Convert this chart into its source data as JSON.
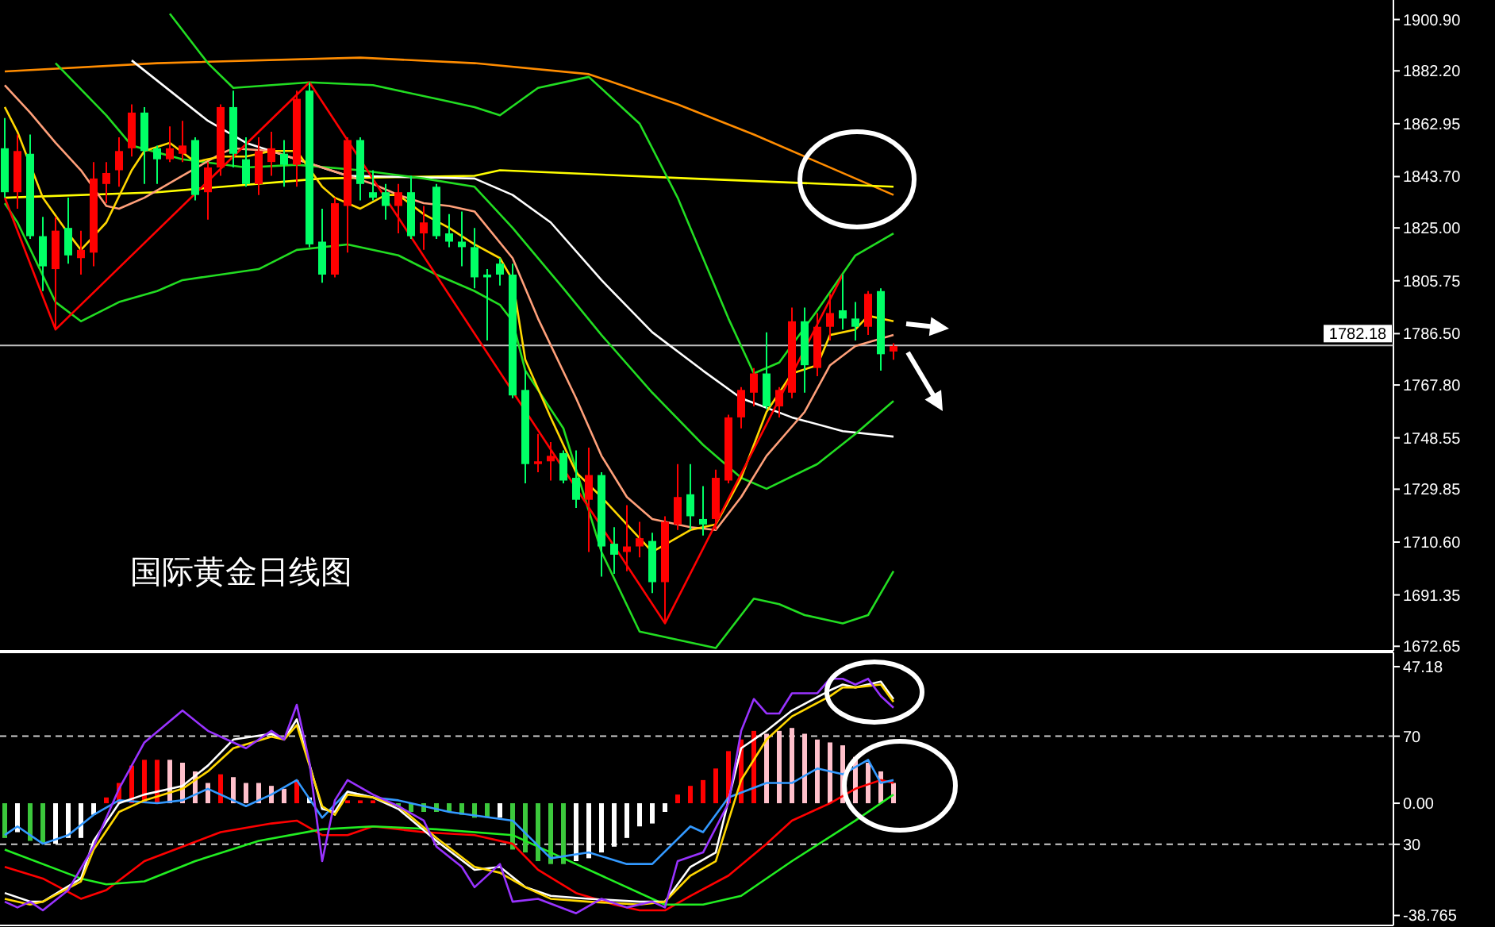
{
  "chart_data": [
    {
      "type": "candlestick",
      "tick_labels": "y",
      "categories": [
        null,
        null,
        null,
        null,
        null,
        null,
        null,
        null,
        null,
        null,
        null,
        null,
        null,
        null,
        null,
        null,
        null,
        null,
        null,
        null,
        null,
        null,
        null,
        null,
        null,
        null,
        null,
        null,
        null,
        null,
        null,
        null,
        null,
        null,
        null,
        null,
        null,
        null,
        null,
        null,
        null,
        null,
        null,
        null,
        null,
        null,
        null,
        null,
        null,
        null,
        null,
        null,
        null,
        null,
        null,
        null,
        null,
        null,
        null,
        null,
        null,
        null,
        null,
        null,
        null,
        null,
        null,
        null,
        null,
        null,
        null
      ],
      "ohlc": [
        [
          1854,
          1865,
          1836,
          1838
        ],
        [
          1838,
          1859,
          1832,
          1853
        ],
        [
          1852,
          1859,
          1821,
          1822
        ],
        [
          1822,
          1829,
          1802,
          1811
        ],
        [
          1810,
          1829,
          1788,
          1824
        ],
        [
          1825,
          1836,
          1812,
          1815
        ],
        [
          1814,
          1824,
          1808,
          1817
        ],
        [
          1816,
          1849,
          1811,
          1843
        ],
        [
          1841,
          1849,
          1834,
          1845
        ],
        [
          1846,
          1858,
          1840,
          1853
        ],
        [
          1854,
          1870,
          1851,
          1867
        ],
        [
          1867,
          1869,
          1841,
          1853
        ],
        [
          1854,
          1855,
          1841,
          1850
        ],
        [
          1850,
          1862,
          1849,
          1854
        ],
        [
          1852,
          1864,
          1849,
          1855
        ],
        [
          1857,
          1858,
          1835,
          1837
        ],
        [
          1838,
          1849,
          1828,
          1847
        ],
        [
          1847,
          1870,
          1844,
          1869
        ],
        [
          1869,
          1875,
          1847,
          1852
        ],
        [
          1850,
          1858,
          1840,
          1841
        ],
        [
          1841,
          1858,
          1837,
          1853
        ],
        [
          1849,
          1860,
          1844,
          1854
        ],
        [
          1852,
          1857,
          1840,
          1848
        ],
        [
          1848,
          1875,
          1840,
          1872
        ],
        [
          1875,
          1878,
          1818,
          1819
        ],
        [
          1820,
          1832,
          1805,
          1808
        ],
        [
          1808,
          1836,
          1807,
          1834
        ],
        [
          1833,
          1858,
          1816,
          1857
        ],
        [
          1857,
          1858,
          1835,
          1841
        ],
        [
          1838,
          1846,
          1835,
          1836
        ],
        [
          1838,
          1841,
          1828,
          1833
        ],
        [
          1833,
          1841,
          1823,
          1838
        ],
        [
          1838,
          1844,
          1821,
          1822
        ],
        [
          1823,
          1833,
          1817,
          1827
        ],
        [
          1840,
          1841,
          1821,
          1822
        ],
        [
          1823,
          1830,
          1818,
          1820
        ],
        [
          1820,
          1831,
          1811,
          1818
        ],
        [
          1818,
          1825,
          1803,
          1807
        ],
        [
          1808,
          1810,
          1784,
          1807
        ],
        [
          1812,
          1814,
          1804,
          1808
        ],
        [
          1808,
          1812,
          1763,
          1764
        ],
        [
          1766,
          1773,
          1732,
          1739
        ],
        [
          1739,
          1750,
          1736,
          1740
        ],
        [
          1740,
          1747,
          1733,
          1742
        ],
        [
          1743,
          1744,
          1732,
          1733
        ],
        [
          1734,
          1744,
          1723,
          1726
        ],
        [
          1726,
          1745,
          1707,
          1735
        ],
        [
          1735,
          1736,
          1698,
          1709
        ],
        [
          1710,
          1716,
          1699,
          1706
        ],
        [
          1707,
          1724,
          1700,
          1709
        ],
        [
          1709,
          1718,
          1705,
          1712
        ],
        [
          1711,
          1714,
          1692,
          1696
        ],
        [
          1696,
          1720,
          1681,
          1718
        ],
        [
          1717,
          1739,
          1715,
          1727
        ],
        [
          1728,
          1739,
          1715,
          1720
        ],
        [
          1719,
          1731,
          1713,
          1717
        ],
        [
          1719,
          1737,
          1715,
          1734
        ],
        [
          1733,
          1757,
          1732,
          1756
        ],
        [
          1756,
          1767,
          1752,
          1766
        ],
        [
          1765,
          1774,
          1760,
          1772
        ],
        [
          1772,
          1787,
          1759,
          1760
        ],
        [
          1760,
          1767,
          1756,
          1766
        ],
        [
          1765,
          1796,
          1763,
          1791
        ],
        [
          1791,
          1796,
          1765,
          1775
        ],
        [
          1774,
          1794,
          1771,
          1789
        ],
        [
          1789,
          1801,
          1784,
          1794
        ],
        [
          1795,
          1808,
          1788,
          1792
        ],
        [
          1792,
          1798,
          1784,
          1789
        ],
        [
          1789,
          1802,
          1786,
          1801
        ],
        [
          1802,
          1803,
          1773,
          1779
        ],
        [
          1780,
          1783,
          1777,
          1782
        ]
      ],
      "colors": [
        "#00ff66",
        "#ff0000",
        "#00ff66",
        "#00ff66",
        "#ff0000",
        "#00ff66",
        "#ff0000",
        "#ff0000",
        "#ff0000",
        "#ff0000",
        "#ff0000",
        "#00ff66",
        "#00ff66",
        "#ff0000",
        "#ff0000",
        "#00ff66",
        "#ff0000",
        "#ff0000",
        "#00ff66",
        "#00ff66",
        "#ff0000",
        "#ff0000",
        "#00ff66",
        "#ff0000",
        "#00ff66",
        "#00ff66",
        "#ff0000",
        "#ff0000",
        "#00ff66",
        "#00ff66",
        "#00ff66",
        "#ff0000",
        "#00ff66",
        "#ff0000",
        "#00ff66",
        "#00ff66",
        "#00ff66",
        "#00ff66",
        "#00ff66",
        "#00ff66",
        "#00ff66",
        "#00ff66",
        "#ff0000",
        "#ff0000",
        "#00ff66",
        "#00ff66",
        "#ff0000",
        "#00ff66",
        "#00ff66",
        "#ff0000",
        "#ff0000",
        "#00ff66",
        "#ff0000",
        "#ff0000",
        "#00ff66",
        "#00ff66",
        "#ff0000",
        "#ff0000",
        "#ff0000",
        "#ff0000",
        "#00ff66",
        "#ff0000",
        "#ff0000",
        "#00ff66",
        "#ff0000",
        "#ff0000",
        "#00ff66",
        "#00ff66",
        "#ff0000",
        "#00ff66",
        "#ff0000"
      ],
      "series": [
        {
          "type": "line",
          "color": "#ff8c00",
          "values": [
            1882,
            null,
            null,
            null,
            null,
            null,
            null,
            null,
            null,
            null,
            null,
            null,
            1885,
            null,
            null,
            null,
            null,
            null,
            null,
            null,
            null,
            null,
            null,
            null,
            null,
            null,
            null,
            null,
            1887,
            null,
            null,
            null,
            null,
            null,
            null,
            null,
            null,
            1885,
            null,
            null,
            null,
            null,
            null,
            null,
            null,
            null,
            1881,
            null,
            null,
            null,
            null,
            null,
            null,
            1870,
            null,
            null,
            null,
            null,
            null,
            1859,
            null,
            null,
            null,
            null,
            1849,
            null,
            null,
            null,
            null,
            null,
            1837
          ]
        },
        {
          "type": "line",
          "color": "#ffff00",
          "values": [
            1836,
            null,
            null,
            null,
            null,
            null,
            null,
            null,
            null,
            null,
            null,
            null,
            1838,
            null,
            null,
            null,
            null,
            null,
            null,
            null,
            null,
            null,
            null,
            null,
            null,
            1843,
            null,
            null,
            null,
            null,
            null,
            null,
            null,
            null,
            null,
            null,
            null,
            1844,
            null,
            1846,
            null,
            null,
            null,
            null,
            null,
            null,
            null,
            null,
            null,
            null,
            null,
            null,
            null,
            null,
            1843,
            null,
            null,
            null,
            null,
            null,
            null,
            null,
            null,
            null,
            null,
            null,
            null,
            null,
            null,
            null,
            1840
          ]
        },
        {
          "type": "line",
          "color": "#ffffff",
          "values": [
            null,
            null,
            null,
            null,
            null,
            null,
            null,
            null,
            null,
            null,
            1886,
            null,
            null,
            null,
            null,
            null,
            1864,
            null,
            null,
            1856,
            null,
            null,
            null,
            null,
            null,
            null,
            null,
            1844,
            null,
            null,
            null,
            null,
            null,
            null,
            null,
            null,
            null,
            1843,
            null,
            null,
            1837,
            null,
            null,
            1827,
            null,
            null,
            null,
            1806,
            null,
            null,
            null,
            1787,
            null,
            null,
            null,
            1773,
            null,
            null,
            1763,
            null,
            null,
            null,
            1756,
            null,
            null,
            null,
            1751,
            null,
            null,
            null,
            1749
          ]
        },
        {
          "type": "line",
          "color": "#22dd22",
          "values": [
            null,
            null,
            null,
            null,
            null,
            null,
            null,
            null,
            null,
            null,
            null,
            null,
            null,
            1903,
            null,
            null,
            1885,
            null,
            1876,
            null,
            null,
            null,
            null,
            null,
            1878,
            null,
            null,
            null,
            null,
            1877,
            null,
            null,
            null,
            null,
            1872,
            null,
            null,
            1869,
            null,
            1866,
            null,
            null,
            1876,
            null,
            null,
            null,
            1880,
            null,
            null,
            null,
            1863,
            null,
            null,
            1836,
            null,
            null,
            null,
            1792,
            null,
            1772,
            null,
            1776,
            null,
            null,
            1795,
            null,
            null,
            1815,
            null,
            null,
            1823
          ]
        },
        {
          "type": "line",
          "color": "#22dd22",
          "values": [
            null,
            null,
            null,
            null,
            1885,
            null,
            null,
            null,
            1866,
            null,
            1855,
            null,
            null,
            null,
            1850,
            null,
            null,
            null,
            null,
            1847,
            null,
            null,
            null,
            1848,
            null,
            null,
            null,
            null,
            1846,
            null,
            null,
            null,
            null,
            1843,
            null,
            null,
            null,
            1840,
            null,
            null,
            1825,
            null,
            null,
            null,
            1803,
            null,
            null,
            1786,
            null,
            null,
            null,
            1765,
            null,
            null,
            null,
            1746,
            null,
            null,
            1734,
            null,
            1730,
            null,
            null,
            null,
            1739,
            null,
            null,
            1750,
            null,
            null,
            1762
          ]
        },
        {
          "type": "line",
          "color": "#22dd22",
          "values": [
            1834,
            1827,
            null,
            null,
            1798,
            null,
            1791,
            null,
            null,
            1798,
            null,
            null,
            1802,
            null,
            1806,
            null,
            null,
            null,
            null,
            null,
            1810,
            null,
            null,
            1817,
            null,
            null,
            null,
            1819,
            null,
            null,
            null,
            1815,
            null,
            null,
            1808,
            null,
            null,
            1802,
            null,
            1797,
            1791,
            1773,
            null,
            null,
            1752,
            null,
            null,
            1707,
            null,
            null,
            1678,
            null,
            null,
            null,
            null,
            null,
            1672,
            null,
            null,
            1690,
            null,
            1688,
            null,
            1684,
            null,
            null,
            1681,
            null,
            1684,
            null,
            1700
          ]
        },
        {
          "type": "line",
          "color": "#ffa07a",
          "values": [
            1877,
            null,
            1867,
            null,
            1856,
            null,
            1846,
            null,
            1833,
            1832,
            null,
            1836,
            null,
            null,
            1844,
            null,
            null,
            1852,
            1854,
            null,
            null,
            1853,
            null,
            1850,
            null,
            1847,
            null,
            null,
            null,
            1841,
            null,
            1837,
            null,
            1834,
            null,
            1833,
            null,
            1831,
            null,
            null,
            1814,
            null,
            1792,
            null,
            null,
            1763,
            null,
            1742,
            null,
            1727,
            null,
            1719,
            null,
            null,
            1716,
            null,
            1715,
            null,
            1727,
            null,
            1742,
            null,
            null,
            1758,
            null,
            1775,
            null,
            1782,
            null,
            null,
            1786
          ]
        },
        {
          "type": "line",
          "color": "#ffd700",
          "values": [
            1869,
            1860,
            null,
            1836,
            null,
            1823,
            1817,
            null,
            1827,
            null,
            1846,
            1853,
            null,
            1856,
            null,
            1849,
            null,
            1851,
            null,
            1851,
            null,
            1853,
            null,
            1853,
            null,
            1840,
            1836,
            null,
            1832,
            null,
            1837,
            1837,
            null,
            1830,
            null,
            1825,
            null,
            1819,
            null,
            1814,
            1806,
            1777,
            null,
            1756,
            null,
            1736,
            null,
            1727,
            null,
            1717,
            null,
            1707,
            null,
            null,
            1715,
            null,
            1717,
            null,
            1734,
            null,
            1758,
            null,
            1772,
            null,
            1775,
            1786,
            null,
            1788,
            1793,
            null,
            1791
          ]
        },
        {
          "type": "line",
          "color": "#ff0000",
          "values": [
            1836,
            null,
            null,
            null,
            1788,
            null,
            null,
            null,
            null,
            null,
            null,
            null,
            null,
            null,
            null,
            null,
            null,
            null,
            null,
            null,
            null,
            null,
            null,
            null,
            1878,
            null,
            null,
            null,
            null,
            null,
            null,
            null,
            null,
            null,
            null,
            null,
            null,
            null,
            null,
            null,
            null,
            null,
            null,
            null,
            null,
            null,
            null,
            null,
            null,
            null,
            null,
            null,
            1681,
            null,
            null,
            null,
            null,
            null,
            null,
            null,
            null,
            null,
            null,
            null,
            null,
            null,
            1808,
            null,
            null,
            null,
            null
          ]
        }
      ],
      "ylim": [
        1671,
        1908
      ],
      "yticks": [
        {
          "value": 1900.9,
          "label": "1900.90"
        },
        {
          "value": 1882.2,
          "label": "1882.20"
        },
        {
          "value": 1862.95,
          "label": "1862.95"
        },
        {
          "value": 1843.7,
          "label": "1843.70"
        },
        {
          "value": 1825,
          "label": "1825.00"
        },
        {
          "value": 1805.75,
          "label": "1805.75"
        },
        {
          "value": 1786.5,
          "label": "1786.50"
        },
        {
          "value": 1767.8,
          "label": "1767.80"
        },
        {
          "value": 1748.55,
          "label": "1748.55"
        },
        {
          "value": 1729.85,
          "label": "1729.85"
        },
        {
          "value": 1710.6,
          "label": "1710.60"
        },
        {
          "value": 1691.35,
          "label": "1691.35"
        },
        {
          "value": 1672.65,
          "label": "1672.65"
        }
      ],
      "ref_lines": [
        {
          "axis": "y",
          "value": 1782.18,
          "label": "1782.18",
          "color": "#c0c0c0",
          "line_style": "solid"
        }
      ],
      "annotations": [
        "国际黄金日线图"
      ]
    },
    {
      "type": "bar",
      "tick_labels": "y",
      "categories": [
        null,
        null,
        null,
        null,
        null,
        null,
        null,
        null,
        null,
        null,
        null,
        null,
        null,
        null,
        null,
        null,
        null,
        null,
        null,
        null,
        null,
        null,
        null,
        null,
        null,
        null,
        null,
        null,
        null,
        null,
        null,
        null,
        null,
        null,
        null,
        null,
        null,
        null,
        null,
        null,
        null,
        null,
        null,
        null,
        null,
        null,
        null,
        null,
        null,
        null,
        null,
        null,
        null,
        null,
        null,
        null,
        null,
        null,
        null,
        null,
        null,
        null,
        null,
        null,
        null,
        null,
        null,
        null,
        null,
        null,
        null
      ],
      "series": [
        {
          "type": "bar",
          "values": [
            -12,
            -10,
            -13,
            -14,
            -14,
            -12,
            -12,
            -4,
            2,
            7,
            13,
            15,
            15,
            15,
            14,
            11,
            7,
            10,
            9,
            7,
            7,
            6,
            5,
            8,
            2,
            null,
            null,
            1,
            1,
            1,
            null,
            -1,
            -3,
            -3,
            -3,
            -3,
            -4,
            -5,
            -5,
            -5,
            -16,
            -17,
            -20,
            -21,
            -21,
            -20,
            -19,
            -17,
            -15,
            -12,
            -8,
            -7,
            -3,
            3,
            6,
            8,
            12,
            18,
            22,
            25,
            24,
            25,
            26,
            24,
            22,
            21,
            20,
            16,
            14,
            11,
            7
          ],
          "colors": [
            "#3cc83c",
            "#ffffff",
            "#3cc83c",
            "#3cc83c",
            "#ffffff",
            "#ffffff",
            "#ffffff",
            "#ffffff",
            "#ff0000",
            "#ff0000",
            "#ff0000",
            "#ff0000",
            "#ff0000",
            "#ffc0cb",
            "#ffc0cb",
            "#ffc0cb",
            "#ffc0cb",
            "#ff0000",
            "#ffc0cb",
            "#ffc0cb",
            "#ffc0cb",
            "#ffc0cb",
            "#ffc0cb",
            "#ff0000",
            "#ffffff",
            null,
            null,
            "#ff0000",
            "#ff0000",
            "#ff0000",
            null,
            "#3cc83c",
            "#3cc83c",
            "#3cc83c",
            "#3cc83c",
            "#3cc83c",
            "#3cc83c",
            "#3cc83c",
            "#3cc83c",
            "#ffffff",
            "#3cc83c",
            "#3cc83c",
            "#3cc83c",
            "#3cc83c",
            "#3cc83c",
            "#ffffff",
            "#ffffff",
            "#ffffff",
            "#ffffff",
            "#ffffff",
            "#ffffff",
            "#ffffff",
            "#ffffff",
            "#ff0000",
            "#ff0000",
            "#ff0000",
            "#ff0000",
            "#ff0000",
            "#ff0000",
            "#ff0000",
            "#ffc0cb",
            "#ffc0cb",
            "#ffc0cb",
            "#ffc0cb",
            "#ffc0cb",
            "#ffc0cb",
            "#ffc0cb",
            "#ffc0cb",
            "#ffc0cb",
            "#ffc0cb",
            "#ffc0cb"
          ]
        },
        {
          "type": "line",
          "color": "#ff0000",
          "values": [
            -22,
            null,
            null,
            -26,
            null,
            null,
            -33,
            null,
            -30,
            null,
            null,
            -20,
            null,
            null,
            -15,
            null,
            null,
            -10,
            null,
            null,
            null,
            -7,
            null,
            -6,
            null,
            -11,
            null,
            -11,
            null,
            -8,
            null,
            null,
            null,
            -10,
            null,
            null,
            null,
            -11,
            null,
            null,
            -14,
            null,
            -23,
            null,
            null,
            -31,
            null,
            null,
            -35,
            null,
            -37,
            null,
            -37,
            null,
            -32,
            null,
            null,
            -25,
            null,
            null,
            -14,
            null,
            -6,
            null,
            null,
            0,
            null,
            5,
            null,
            8,
            7
          ]
        },
        {
          "type": "line",
          "color": "#22ee22",
          "values": [
            -16,
            null,
            null,
            null,
            null,
            null,
            -26,
            null,
            -28,
            null,
            null,
            -27,
            null,
            null,
            null,
            -20,
            null,
            null,
            null,
            null,
            -13,
            null,
            null,
            null,
            null,
            -9,
            null,
            null,
            null,
            -8,
            null,
            null,
            null,
            null,
            -9,
            null,
            null,
            null,
            null,
            null,
            -11,
            null,
            null,
            -17,
            null,
            null,
            null,
            -25,
            null,
            null,
            null,
            null,
            -35,
            null,
            null,
            -35,
            null,
            null,
            -32,
            null,
            null,
            null,
            -20,
            null,
            null,
            null,
            null,
            -6,
            null,
            null,
            3
          ]
        },
        {
          "type": "line",
          "color": "#3399ff",
          "values": [
            -11,
            -8,
            null,
            -14,
            null,
            -11,
            null,
            -4,
            null,
            1,
            null,
            null,
            0,
            null,
            1,
            null,
            5,
            null,
            null,
            -1,
            null,
            3,
            null,
            8,
            null,
            -5,
            null,
            4,
            null,
            2,
            null,
            1,
            null,
            null,
            null,
            -3,
            null,
            null,
            null,
            null,
            -6,
            null,
            null,
            -19,
            null,
            null,
            -17,
            null,
            null,
            -21,
            null,
            -21,
            null,
            null,
            -8,
            -10,
            null,
            2,
            null,
            null,
            7,
            null,
            7,
            null,
            12,
            null,
            10,
            null,
            15,
            7,
            8
          ]
        },
        {
          "type": "line",
          "color": "#ffffff",
          "values": [
            -31,
            null,
            -34,
            -34,
            null,
            null,
            -26,
            -13,
            null,
            0,
            null,
            3,
            null,
            null,
            6,
            null,
            13,
            null,
            22,
            null,
            null,
            24,
            22,
            29,
            null,
            -2,
            -3,
            4,
            null,
            2,
            null,
            -2,
            null,
            null,
            -13,
            null,
            null,
            -23,
            null,
            -22,
            null,
            -29,
            null,
            -32,
            null,
            null,
            -33,
            null,
            null,
            null,
            -34,
            null,
            -34,
            null,
            -22,
            null,
            -17,
            null,
            19,
            null,
            25,
            null,
            32,
            null,
            null,
            39,
            41,
            40,
            null,
            42,
            36
          ]
        },
        {
          "type": "line",
          "color": "#ffd700",
          "values": [
            -33,
            null,
            -35,
            -34,
            null,
            null,
            -27,
            -16,
            null,
            -3,
            null,
            1,
            null,
            null,
            5,
            null,
            11,
            null,
            19,
            null,
            null,
            23,
            22,
            27,
            null,
            -1,
            -4,
            3,
            null,
            2,
            null,
            -1,
            null,
            null,
            -12,
            null,
            null,
            -22,
            null,
            -24,
            null,
            -29,
            null,
            -33,
            null,
            null,
            -34,
            null,
            null,
            null,
            -35,
            null,
            -34,
            null,
            -25,
            null,
            -20,
            null,
            8,
            null,
            22,
            null,
            30,
            null,
            null,
            37,
            40,
            40,
            null,
            41,
            35
          ]
        },
        {
          "type": "line",
          "color": "#9933ff",
          "values": [
            -34,
            -36,
            -34,
            -37,
            null,
            -30,
            null,
            -15,
            null,
            5,
            null,
            21,
            null,
            null,
            32,
            null,
            25,
            null,
            21,
            19,
            null,
            25,
            22,
            34,
            14,
            -20,
            1,
            8,
            null,
            3,
            null,
            -1,
            null,
            -6,
            -15,
            null,
            -22,
            -29,
            null,
            -21,
            -34,
            null,
            -33,
            null,
            null,
            -38,
            null,
            -33,
            null,
            -36,
            null,
            -34,
            -36,
            -20,
            null,
            -17,
            null,
            0,
            25,
            36,
            31,
            31,
            38,
            null,
            38,
            43,
            43,
            41,
            43,
            37,
            33
          ]
        }
      ],
      "ylim": [
        -42.2,
        52.1
      ],
      "yticks": [
        47.18,
        {
          "value": 0,
          "label": "0.00"
        },
        -38.765
      ],
      "y2lim": [
        0,
        101
      ],
      "y2ticks": [
        70,
        30
      ],
      "ref_lines": [
        {
          "axis": "y2",
          "value": 70,
          "color": "#cccccc",
          "line_style": "dashed"
        },
        {
          "axis": "y2",
          "value": 30,
          "color": "#cccccc",
          "line_style": "dashed"
        }
      ]
    }
  ]
}
